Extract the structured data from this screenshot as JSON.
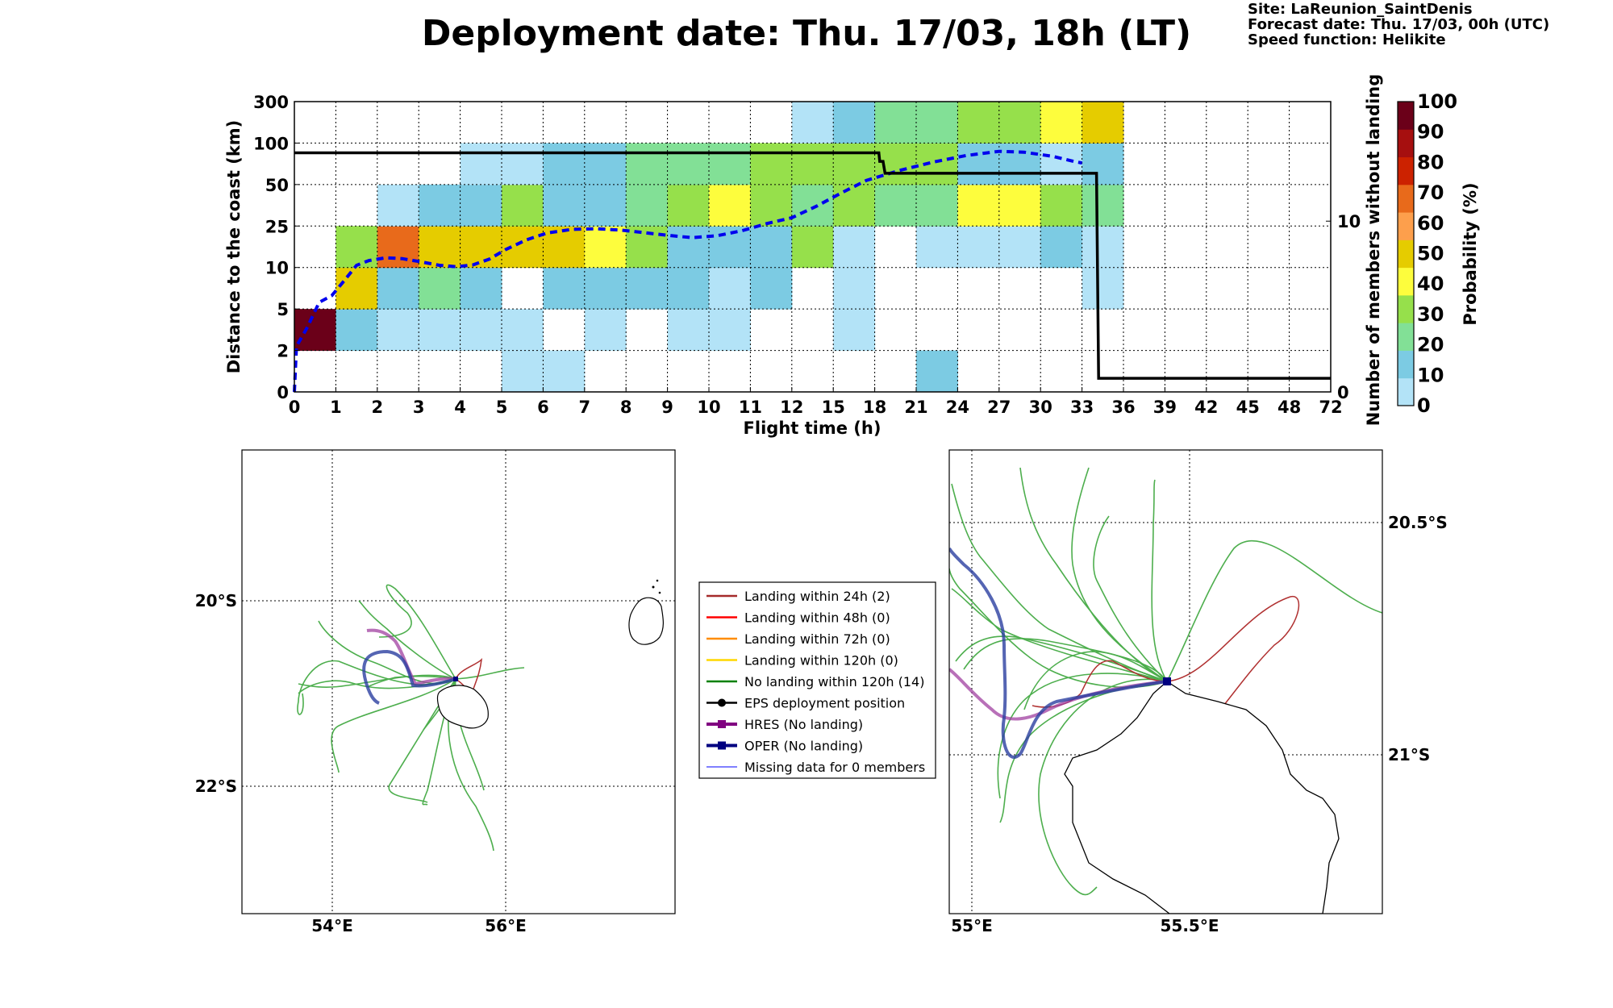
{
  "title": "Deployment date: Thu. 17/03, 18h (LT)",
  "info": {
    "site": "Site: LaReunion_SaintDenis",
    "forecast": "Forecast date: Thu. 17/03, 00h (UTC)",
    "speed": "Speed function: Helikite"
  },
  "chart_data": [
    {
      "type": "heatmap",
      "xlabel": "Flight time (h)",
      "ylabel": "Distance to the coast (km)",
      "y2label": "Number of members without landing",
      "x_ticks": [
        "0",
        "1",
        "2",
        "3",
        "4",
        "5",
        "6",
        "7",
        "8",
        "9",
        "10",
        "11",
        "12",
        "15",
        "18",
        "21",
        "24",
        "27",
        "30",
        "33",
        "36",
        "39",
        "42",
        "45",
        "48",
        "72"
      ],
      "y_ticks": [
        "0",
        "2",
        "5",
        "10",
        "25",
        "50",
        "100",
        "300"
      ],
      "y2_ticks": [
        "0",
        "10"
      ],
      "grid": true,
      "colorbar": {
        "label": "Probability (%)",
        "ticks": [
          "0",
          "10",
          "20",
          "30",
          "40",
          "50",
          "60",
          "70",
          "80",
          "90",
          "100"
        ],
        "colors": [
          "#b3e3f7",
          "#7ccbe3",
          "#82e096",
          "#96e04b",
          "#fdfd3d",
          "#e5cc00",
          "#fd9f4c",
          "#e86a1b",
          "#cc2200",
          "#a60f0f",
          "#6b0019"
        ]
      },
      "cells_rows_from_bottom": [
        [
          -1,
          -1,
          -1,
          -1,
          -1,
          0,
          0,
          -1,
          -1,
          -1,
          -1,
          -1,
          -1,
          -1,
          -1,
          1,
          -1,
          -1,
          -1,
          -1,
          -1,
          -1,
          -1,
          -1,
          -1
        ],
        [
          10,
          1,
          0,
          0,
          0,
          0,
          -1,
          0,
          -1,
          0,
          0,
          -1,
          -1,
          0,
          -1,
          -1,
          -1,
          -1,
          -1,
          -1,
          -1,
          -1,
          -1,
          -1,
          -1
        ],
        [
          -1,
          5,
          1,
          2,
          1,
          -1,
          1,
          1,
          1,
          1,
          0,
          1,
          -1,
          0,
          -1,
          -1,
          -1,
          -1,
          -1,
          0,
          -1,
          -1,
          -1,
          -1,
          -1
        ],
        [
          -1,
          3,
          7,
          5,
          5,
          5,
          5,
          4,
          3,
          1,
          1,
          1,
          3,
          0,
          -1,
          0,
          0,
          0,
          1,
          0,
          -1,
          -1,
          -1,
          -1,
          -1
        ],
        [
          -1,
          -1,
          0,
          1,
          1,
          3,
          1,
          1,
          2,
          3,
          4,
          3,
          2,
          3,
          2,
          2,
          4,
          4,
          3,
          2,
          -1,
          -1,
          -1,
          -1,
          -1
        ],
        [
          -1,
          -1,
          -1,
          -1,
          0,
          0,
          1,
          1,
          2,
          2,
          2,
          3,
          3,
          3,
          3,
          3,
          1,
          1,
          0,
          1,
          -1,
          -1,
          -1,
          -1,
          -1
        ],
        [
          -1,
          -1,
          -1,
          -1,
          -1,
          -1,
          -1,
          -1,
          -1,
          -1,
          -1,
          -1,
          0,
          1,
          2,
          2,
          3,
          3,
          4,
          5,
          -1,
          -1,
          -1,
          -1,
          -1
        ]
      ],
      "median_distance_line": [
        [
          0,
          0
        ],
        [
          0.05,
          2.3
        ],
        [
          0.3,
          3.6
        ],
        [
          0.6,
          5.8
        ],
        [
          0.9,
          6.6
        ],
        [
          1.2,
          8.4
        ],
        [
          1.5,
          10.8
        ],
        [
          1.8,
          12.5
        ],
        [
          2.2,
          13.5
        ],
        [
          2.6,
          13.2
        ],
        [
          3.0,
          12.2
        ],
        [
          3.5,
          10.8
        ],
        [
          3.9,
          10.3
        ],
        [
          4.3,
          10.9
        ],
        [
          4.7,
          13.0
        ],
        [
          5.1,
          16.5
        ],
        [
          5.6,
          20.0
        ],
        [
          6.1,
          22.5
        ],
        [
          6.7,
          23.8
        ],
        [
          7.3,
          24.0
        ],
        [
          7.9,
          23.5
        ],
        [
          8.5,
          22.5
        ],
        [
          9.1,
          21.5
        ],
        [
          9.6,
          20.8
        ],
        [
          10.2,
          21.5
        ],
        [
          10.8,
          23.3
        ],
        [
          11.4,
          26.5
        ],
        [
          12.0,
          30.0
        ],
        [
          12.6,
          37.0
        ],
        [
          13.2,
          45.0
        ],
        [
          13.8,
          55.0
        ],
        [
          14.6,
          67.0
        ],
        [
          15.4,
          77.0
        ],
        [
          16.2,
          85.0
        ],
        [
          17.0,
          90.0
        ],
        [
          17.6,
          89.0
        ],
        [
          18.3,
          84.0
        ],
        [
          18.8,
          78.0
        ],
        [
          19.0,
          76.0
        ]
      ],
      "members_without_landing_line": [
        [
          0,
          14
        ],
        [
          14.1,
          14
        ],
        [
          14.12,
          13.5
        ],
        [
          14.2,
          13.5
        ],
        [
          14.25,
          12.8
        ],
        [
          19.35,
          12.8
        ],
        [
          19.4,
          0.8
        ],
        [
          25,
          0.8
        ]
      ],
      "y2lim": [
        0,
        17
      ]
    },
    {
      "type": "map",
      "grid": true,
      "x_ticks": [
        "54°E",
        "56°E"
      ],
      "y_ticks": [
        "20°S",
        "22°S"
      ]
    },
    {
      "type": "map",
      "grid": true,
      "x_ticks": [
        "55°E",
        "55.5°E"
      ],
      "y_ticks": [
        "20.5°S",
        "21°S"
      ]
    }
  ],
  "legend": [
    {
      "label": "Landing within 24h (2)",
      "color": "#a52a2a",
      "kind": "line"
    },
    {
      "label": "Landing within 48h (0)",
      "color": "#ff0000",
      "kind": "line"
    },
    {
      "label": "Landing within 72h (0)",
      "color": "#ff8c00",
      "kind": "line"
    },
    {
      "label": "Landing within 120h (0)",
      "color": "#ffd700",
      "kind": "line"
    },
    {
      "label": "No landing within 120h (14)",
      "color": "#008000",
      "kind": "line"
    },
    {
      "label": "EPS deployment position",
      "color": "#000000",
      "kind": "dot"
    },
    {
      "label": "HRES (No landing)",
      "color": "#800080",
      "kind": "square"
    },
    {
      "label": "OPER (No landing)",
      "color": "#000080",
      "kind": "square"
    },
    {
      "label": "Missing data for 0 members",
      "color": "#0000ff",
      "kind": "thin"
    }
  ]
}
